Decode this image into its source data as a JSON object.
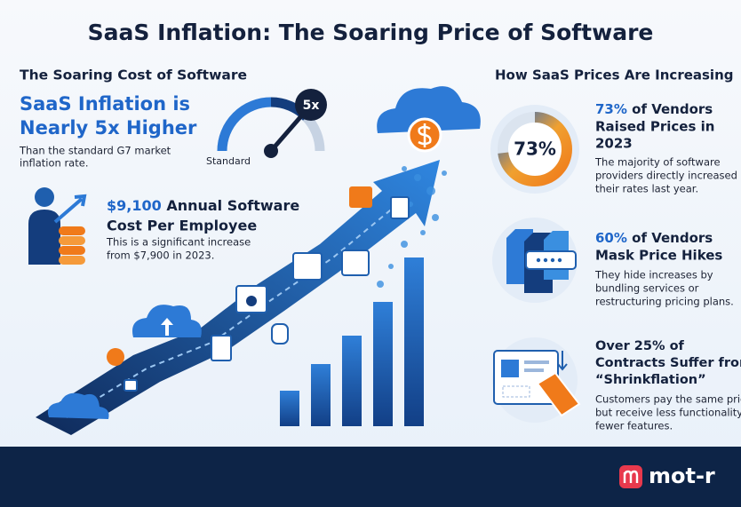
{
  "title": "SaaS Inflation: The Soaring Price of Software",
  "left": {
    "heading": "The Soaring Cost of Software",
    "headline_lines": [
      "SaaS Inflation is",
      "Nearly 5x Higher"
    ],
    "note_lines": [
      "Than the standard G7 market",
      "inflation rate."
    ],
    "gauge": {
      "multiplier": "5x",
      "baseline": "Standard"
    },
    "cost": {
      "highlight": "$9,100",
      "heading_lines": [
        "Annual Software",
        "Cost Per Employee"
      ],
      "note_lines": [
        "This is a significant increase",
        "from $7,900 in 2023."
      ]
    }
  },
  "right": {
    "heading": "How SaaS Prices Are Increasing",
    "items": [
      {
        "donut": {
          "value": 73,
          "label": "73%"
        },
        "highlight": "73%",
        "heading_lines": [
          "of Vendors",
          "Raised Prices in",
          "2023"
        ],
        "note_lines": [
          "The majority of software",
          "providers directly increased",
          "their rates last year."
        ]
      },
      {
        "highlight": "60%",
        "heading_lines": [
          "of Vendors",
          "Mask Price Hikes"
        ],
        "note_lines": [
          "They hide increases by",
          "bundling services or",
          "restructuring pricing plans."
        ]
      },
      {
        "heading_lines": [
          "Over 25% of",
          "Contracts Suffer from",
          "“Shrinkflation”"
        ],
        "note_lines": [
          "Customers pay the same price",
          "but receive less functionality or",
          "fewer features."
        ]
      }
    ]
  },
  "footer": {
    "brand": "mot-r"
  }
}
